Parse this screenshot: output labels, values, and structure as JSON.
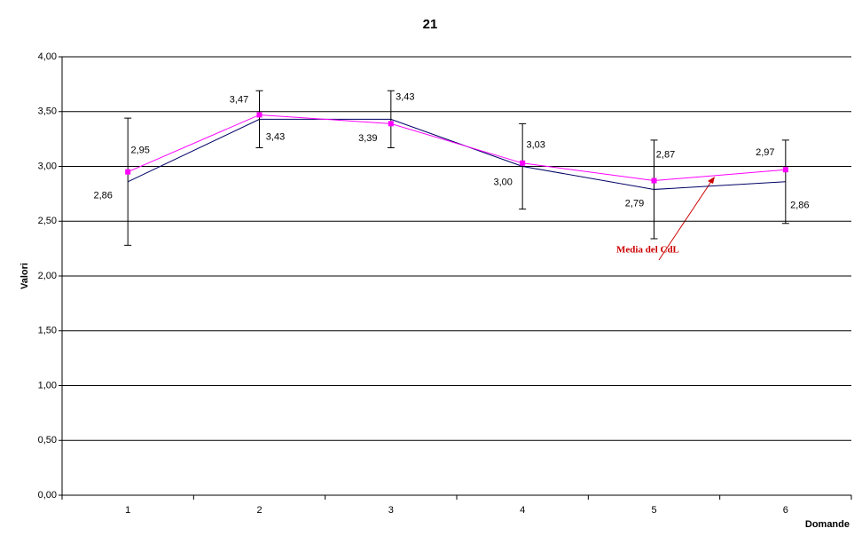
{
  "chart_data": {
    "type": "line",
    "title": "21",
    "x_label": "Domande",
    "y_label": "Valori",
    "categories": [
      "1",
      "2",
      "3",
      "4",
      "5",
      "6"
    ],
    "series": [
      {
        "color": "#000066",
        "values": [
          2.86,
          3.43,
          3.43,
          3.0,
          2.79,
          2.86
        ],
        "value_labels": [
          "2,86",
          "3,43",
          "3,43",
          "3,00",
          "2,79",
          "2,86"
        ],
        "errors": [
          0.58,
          0.26,
          0.26,
          0.39,
          0.45,
          0.38
        ]
      },
      {
        "color": "#ff00ff",
        "values": [
          2.95,
          3.47,
          3.39,
          3.03,
          2.87,
          2.97
        ],
        "value_labels": [
          "2,95",
          "3,47",
          "3,39",
          "3,03",
          "2,87",
          "2,97"
        ],
        "markers": true
      }
    ],
    "ylim": [
      0,
      4
    ],
    "yticks": [
      {
        "value": 0,
        "label": "0,00"
      },
      {
        "value": 0.5,
        "label": "0,50"
      },
      {
        "value": 1,
        "label": "1,00"
      },
      {
        "value": 1.5,
        "label": "1,50"
      },
      {
        "value": 2,
        "label": "2,00"
      },
      {
        "value": 2.5,
        "label": "2,50"
      },
      {
        "value": 3,
        "label": "3,00"
      },
      {
        "value": 3.5,
        "label": "3,50"
      },
      {
        "value": 4,
        "label": "4,00"
      }
    ],
    "grid": true,
    "annotation": "Media del CdL"
  }
}
